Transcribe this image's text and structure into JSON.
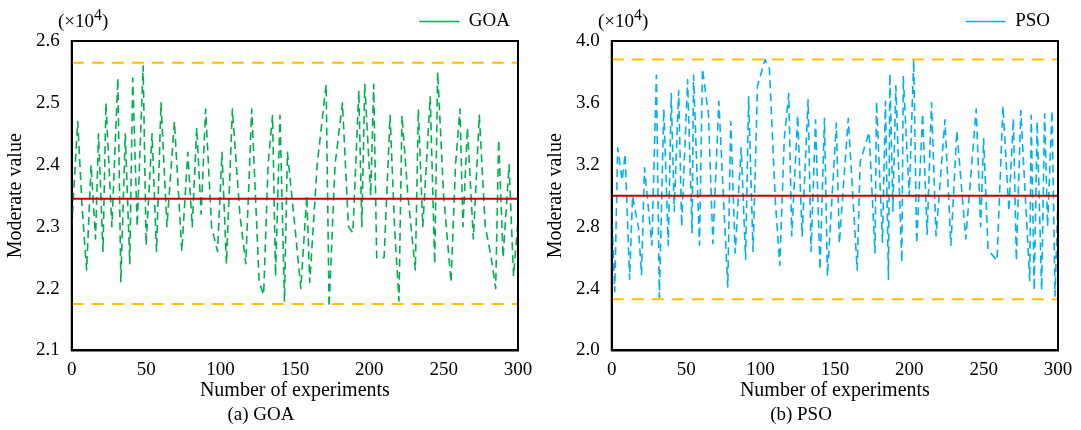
{
  "chart_data": [
    {
      "type": "line",
      "title": "(a) GOA",
      "xlabel": "Number of experiments",
      "ylabel": "Moderate value",
      "annotations": [
        "(×10$^{4}$)"
      ],
      "xlim": [
        0,
        300
      ],
      "xticks": [
        0,
        50,
        100,
        150,
        200,
        250,
        300
      ],
      "ylim": [
        2.1,
        2.6
      ],
      "yticks": [
        2.1,
        2.2,
        2.3,
        2.4,
        2.5,
        2.6
      ],
      "grid": false,
      "legend": "top right",
      "marker": "none",
      "line_style": "dashed",
      "ref_lines": [
        {
          "axis": "y",
          "value": 2.565,
          "color": "#ffc000",
          "line_style": "dashed"
        },
        {
          "axis": "y",
          "value": 2.175,
          "color": "#ffc000",
          "line_style": "dashed"
        },
        {
          "axis": "y",
          "value": 2.345,
          "color": "#c00000",
          "line_style": "solid"
        }
      ],
      "series": [
        {
          "name": "GOA",
          "color": "#00b050",
          "x": [
            0,
            4,
            7,
            10,
            13,
            16,
            18,
            21,
            23,
            27,
            31,
            33,
            36,
            39,
            41,
            44,
            48,
            50,
            54,
            57,
            60,
            64,
            69,
            74,
            78,
            81,
            84,
            87,
            90,
            94,
            98,
            101,
            104,
            108,
            113,
            117,
            121,
            126,
            129,
            132,
            135,
            137,
            140,
            143,
            145,
            150,
            154,
            158,
            160,
            165,
            171,
            173,
            177,
            182,
            186,
            189,
            193,
            195,
            197,
            201,
            203,
            205,
            210,
            214,
            217,
            220,
            222,
            226,
            231,
            233,
            236,
            241,
            244,
            246,
            250,
            255,
            258,
            261,
            263,
            266,
            270,
            274,
            278,
            282,
            285,
            287,
            290,
            294,
            297,
            300
          ],
          "values": [
            2.3,
            2.47,
            2.33,
            2.23,
            2.4,
            2.28,
            2.45,
            2.26,
            2.5,
            2.3,
            2.54,
            2.21,
            2.45,
            2.24,
            2.54,
            2.3,
            2.56,
            2.27,
            2.45,
            2.26,
            2.5,
            2.3,
            2.47,
            2.26,
            2.42,
            2.3,
            2.46,
            2.32,
            2.49,
            2.3,
            2.26,
            2.42,
            2.24,
            2.49,
            2.32,
            2.24,
            2.49,
            2.21,
            2.19,
            2.4,
            2.48,
            2.22,
            2.48,
            2.18,
            2.42,
            2.3,
            2.2,
            2.35,
            2.21,
            2.4,
            2.53,
            2.17,
            2.4,
            2.5,
            2.3,
            2.29,
            2.52,
            2.3,
            2.53,
            2.35,
            2.53,
            2.25,
            2.25,
            2.48,
            2.3,
            2.18,
            2.48,
            2.35,
            2.23,
            2.49,
            2.3,
            2.51,
            2.24,
            2.55,
            2.35,
            2.21,
            2.4,
            2.49,
            2.3,
            2.46,
            2.28,
            2.48,
            2.3,
            2.25,
            2.2,
            2.44,
            2.25,
            2.4,
            2.22,
            2.31
          ]
        }
      ]
    },
    {
      "type": "line",
      "title": "(b) PSO",
      "xlabel": "Number of experiments",
      "ylabel": "Moderate value",
      "annotations": [
        "(×10$^{4}$)"
      ],
      "xlim": [
        0,
        300
      ],
      "xticks": [
        0,
        50,
        100,
        150,
        200,
        250,
        300
      ],
      "ylim": [
        2.0,
        4.0
      ],
      "yticks": [
        {
          "value": 2.0,
          "label": "2.0"
        },
        2.4,
        2.8,
        3.2,
        3.6,
        {
          "value": 4.0,
          "label": "4.0"
        }
      ],
      "grid": false,
      "legend": "top right",
      "marker": "none",
      "line_style": "dashed",
      "ref_lines": [
        {
          "axis": "y",
          "value": 3.88,
          "color": "#ffc000",
          "line_style": "dashed"
        },
        {
          "axis": "y",
          "value": 2.33,
          "color": "#ffc000",
          "line_style": "dashed"
        },
        {
          "axis": "y",
          "value": 3.0,
          "color": "#c00000",
          "line_style": "solid"
        }
      ],
      "series": [
        {
          "name": "PSO",
          "color": "#00b0f0",
          "x": [
            0,
            2,
            4,
            7,
            9,
            12,
            14,
            18,
            20,
            22,
            27,
            30,
            32,
            35,
            38,
            40,
            42,
            45,
            47,
            51,
            54,
            55,
            59,
            61,
            65,
            68,
            72,
            78,
            80,
            83,
            87,
            90,
            92,
            95,
            98,
            103,
            106,
            110,
            113,
            116,
            119,
            121,
            125,
            128,
            132,
            134,
            137,
            140,
            143,
            145,
            151,
            153,
            159,
            165,
            167,
            173,
            177,
            178,
            182,
            184,
            186,
            187,
            189,
            191,
            195,
            196,
            200,
            203,
            205,
            209,
            212,
            215,
            218,
            224,
            228,
            232,
            238,
            245,
            248,
            250,
            253,
            259,
            263,
            267,
            270,
            272,
            275,
            281,
            282,
            284,
            286,
            289,
            291,
            293,
            296,
            298,
            300
          ],
          "values": [
            2.9,
            2.38,
            3.31,
            3.1,
            3.27,
            2.46,
            3.0,
            2.79,
            2.49,
            3.18,
            2.68,
            3.78,
            2.34,
            3.56,
            2.68,
            3.66,
            2.9,
            3.68,
            2.8,
            3.75,
            2.76,
            3.78,
            2.68,
            3.82,
            3.53,
            2.69,
            3.61,
            2.41,
            3.48,
            2.63,
            3.31,
            2.59,
            3.64,
            2.64,
            3.71,
            3.88,
            3.82,
            2.96,
            2.55,
            3.37,
            3.66,
            2.74,
            3.52,
            2.74,
            3.62,
            2.64,
            3.49,
            2.52,
            3.5,
            2.48,
            3.47,
            2.69,
            3.5,
            2.52,
            3.22,
            3.41,
            2.63,
            3.61,
            2.7,
            3.61,
            2.46,
            3.79,
            2.9,
            3.71,
            2.57,
            3.77,
            3.0,
            3.88,
            2.69,
            3.53,
            2.75,
            3.6,
            2.74,
            3.49,
            2.68,
            3.42,
            2.72,
            3.56,
            2.8,
            3.37,
            2.65,
            2.58,
            3.58,
            2.9,
            3.5,
            2.58,
            3.55,
            2.45,
            3.52,
            2.39,
            3.48,
            2.39,
            3.53,
            2.8,
            3.55,
            2.35,
            3.0
          ]
        }
      ]
    }
  ]
}
